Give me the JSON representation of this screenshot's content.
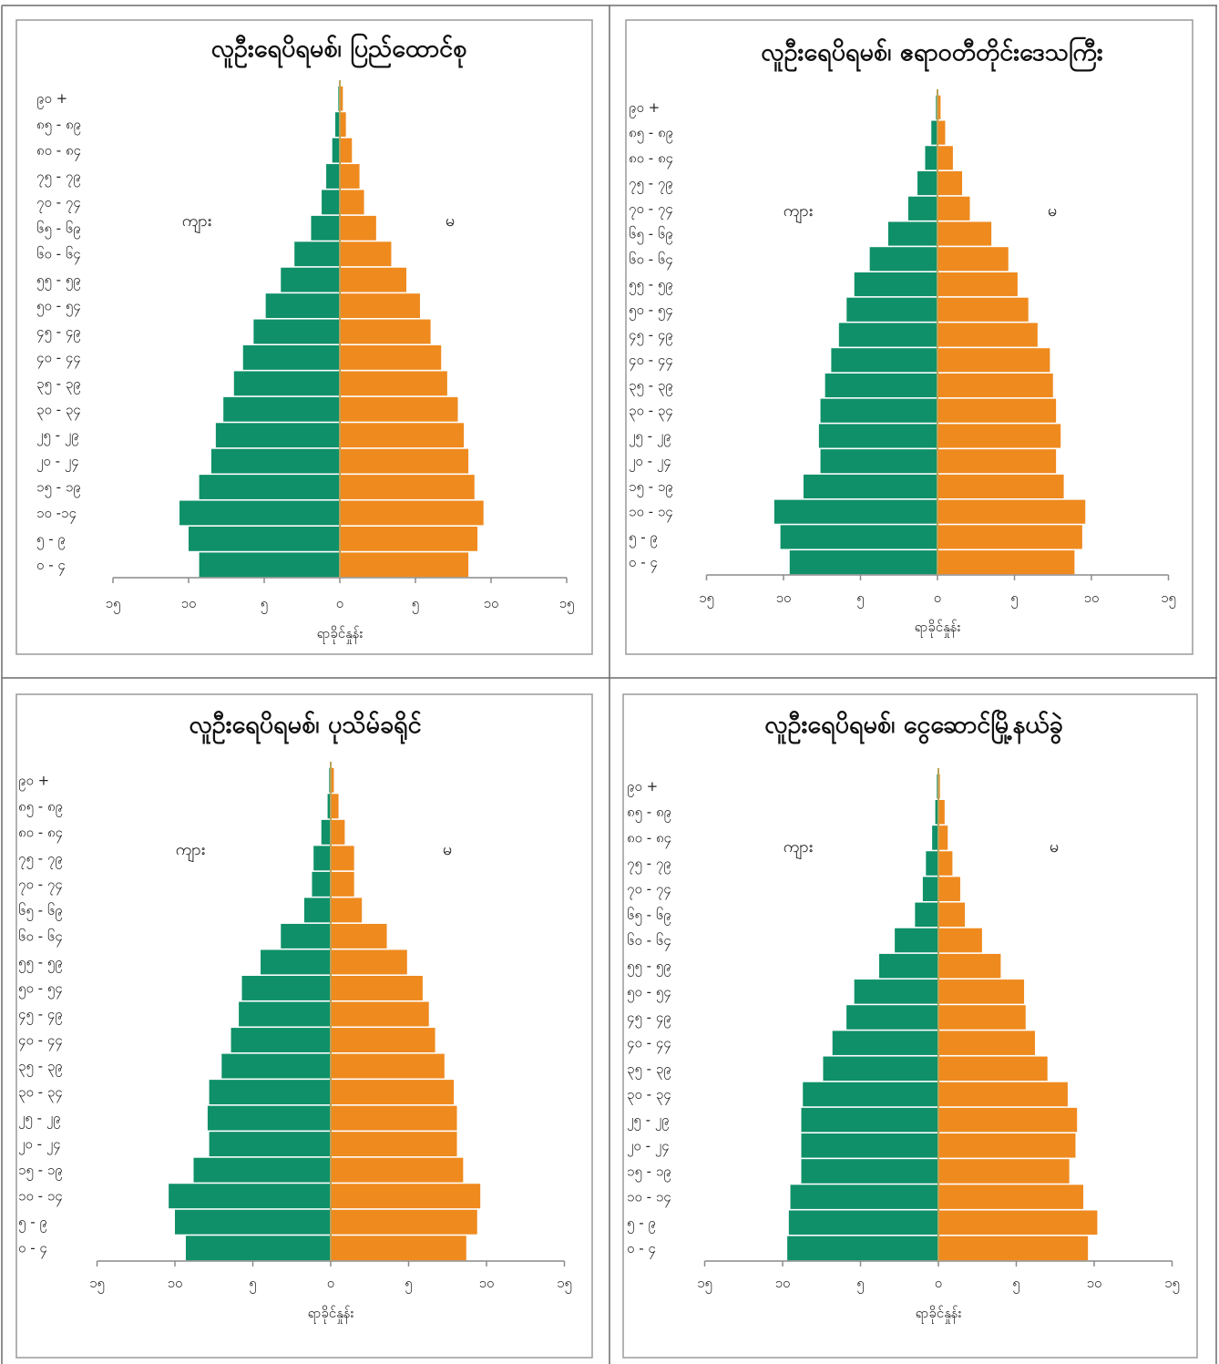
{
  "colors": {
    "male": "#0f9068",
    "female": "#ef8a1f"
  },
  "chart_data": [
    {
      "type": "bar",
      "orientation": "horizontal-population-pyramid",
      "title": "လူဦးရေပိရမစ်၊ ပြည်ထောင်စု",
      "xlabel": "ရာခိုင်နှုန်း",
      "xlim": [
        -15,
        15
      ],
      "xticks": [
        "၁၅",
        "၁၀",
        "၅",
        "၀",
        "၅",
        "၁၀",
        "၁၅"
      ],
      "left_label": "ကျား",
      "right_label": "မ",
      "categories": [
        "၀ - ၄",
        "၅ - ၉",
        "၁၀ -၁၄",
        "၁၅ - ၁၉",
        "၂၀ - ၂၄",
        "၂၅ - ၂၉",
        "၃၀ - ၃၄",
        "၃၅ - ၃၉",
        "၄၀ - ၄၄",
        "၄၅ - ၄၉",
        "၅၀ - ၅၄",
        "၅၅ - ၅၉",
        "၆၀ - ၆၄",
        "၆၅ - ၆၉",
        "၇၀ - ၇၄",
        "၇၅ - ၇၉",
        "၈၀ - ၈၄",
        "၈၅ - ၈၉",
        "၉၀ +"
      ],
      "series": [
        {
          "name": "ကျား",
          "values": [
            9.3,
            10.0,
            10.6,
            9.3,
            8.5,
            8.2,
            7.7,
            7.0,
            6.4,
            5.7,
            4.9,
            3.9,
            3.0,
            1.9,
            1.2,
            0.9,
            0.5,
            0.3,
            0.1
          ]
        },
        {
          "name": "မ",
          "values": [
            8.5,
            9.1,
            9.5,
            8.9,
            8.5,
            8.2,
            7.8,
            7.1,
            6.7,
            6.0,
            5.3,
            4.4,
            3.4,
            2.4,
            1.6,
            1.3,
            0.8,
            0.4,
            0.2
          ]
        }
      ]
    },
    {
      "type": "bar",
      "orientation": "horizontal-population-pyramid",
      "title": "လူဦးရေပိရမစ်၊ ဧရာဝတီတိုင်းဒေသကြီး",
      "xlabel": "ရာခိုင်နှုန်း",
      "xlim": [
        -15,
        15
      ],
      "xticks": [
        "၁၅",
        "၁၀",
        "၅",
        "၀",
        "၅",
        "၁၀",
        "၁၅"
      ],
      "left_label": "ကျား",
      "right_label": "မ",
      "categories": [
        "၀ - ၄",
        "၅ - ၉",
        "၁၀ - ၁၄",
        "၁၅ - ၁၉",
        "၂၀ - ၂၄",
        "၂၅ - ၂၉",
        "၃၀ - ၃၄",
        "၃၅ - ၃၉",
        "၄၀ - ၄၄",
        "၄၅ - ၄၉",
        "၅၀ - ၅၄",
        "၅၅ - ၅၉",
        "၆၀ - ၆၄",
        "၆၅ - ၆၉",
        "၇၀ - ၇၄",
        "၇၅ - ၇၉",
        "၈၀ - ၈၄",
        "၈၅ - ၈၉",
        "၉၀ +"
      ],
      "series": [
        {
          "name": "ကျား",
          "values": [
            9.6,
            10.2,
            10.6,
            8.7,
            7.6,
            7.7,
            7.6,
            7.3,
            6.9,
            6.4,
            5.9,
            5.4,
            4.4,
            3.2,
            1.9,
            1.3,
            0.8,
            0.4,
            0.1
          ]
        },
        {
          "name": "မ",
          "values": [
            8.9,
            9.4,
            9.6,
            8.2,
            7.7,
            8.0,
            7.7,
            7.5,
            7.3,
            6.5,
            5.9,
            5.2,
            4.6,
            3.5,
            2.1,
            1.6,
            1.0,
            0.5,
            0.2
          ]
        }
      ]
    },
    {
      "type": "bar",
      "orientation": "horizontal-population-pyramid",
      "title": "လူဦးရေပိရမစ်၊ ပုသိမ်ခရိုင်",
      "xlabel": "ရာခိုင်နှုန်း",
      "xlim": [
        -15,
        15
      ],
      "xticks": [
        "၁၅",
        "၁၀",
        "၅",
        "၀",
        "၅",
        "၁၀",
        "၁၅"
      ],
      "left_label": "ကျား",
      "right_label": "မ",
      "categories": [
        "၀ - ၄",
        "၅ - ၉",
        "၁၀ - ၁၄",
        "၁၅ - ၁၉",
        "၂၀ - ၂၄",
        "၂၅ - ၂၉",
        "၃၀ - ၃၄",
        "၃၅ - ၃၉",
        "၄၀ - ၄၄",
        "၄၅ - ၄၉",
        "၅၀ - ၅၄",
        "၅၅ - ၅၉",
        "၆၀ - ၆၄",
        "၆၅ - ၆၉",
        "၇၀ - ၇၄",
        "၇၅ - ၇၉",
        "၈၀ - ၈၄",
        "၈၅ - ၈၉",
        "၉၀ +"
      ],
      "series": [
        {
          "name": "ကျား",
          "values": [
            9.3,
            10.0,
            10.4,
            8.8,
            7.8,
            7.9,
            7.8,
            7.0,
            6.4,
            5.9,
            5.7,
            4.5,
            3.2,
            1.7,
            1.2,
            1.1,
            0.6,
            0.2,
            0.1
          ]
        },
        {
          "name": "မ",
          "values": [
            8.7,
            9.4,
            9.6,
            8.5,
            8.1,
            8.1,
            7.9,
            7.3,
            6.7,
            6.3,
            5.9,
            4.9,
            3.6,
            2.0,
            1.5,
            1.5,
            0.9,
            0.5,
            0.2
          ]
        }
      ]
    },
    {
      "type": "bar",
      "orientation": "horizontal-population-pyramid",
      "title": "လူဦးရေပိရမစ်၊ ငွေဆောင်မြို့နယ်ခွဲ",
      "xlabel": "ရာခိုင်နှုန်း",
      "xlim": [
        -15,
        15
      ],
      "xticks": [
        "၁၅",
        "၁၀",
        "၅",
        "၀",
        "၅",
        "၁၀",
        "၁၅"
      ],
      "left_label": "ကျား",
      "right_label": "မ",
      "categories": [
        "၀ - ၄",
        "၅ - ၉",
        "၁၀ - ၁၄",
        "၁၅ - ၁၉",
        "၂၀ - ၂၄",
        "၂၅ - ၂၉",
        "၃၀ - ၃၄",
        "၃၅ - ၃၉",
        "၄၀ - ၄၄",
        "၄၅ - ၄၉",
        "၅၀ - ၅၄",
        "၅၅ - ၅၉",
        "၆၀ - ၆၄",
        "၆၅ - ၆၉",
        "၇၀ - ၇၄",
        "၇၅ - ၇၉",
        "၈၀ - ၈၄",
        "၈၅ - ၈၉",
        "၉၀ +"
      ],
      "series": [
        {
          "name": "ကျား",
          "values": [
            9.7,
            9.6,
            9.5,
            8.8,
            8.8,
            8.8,
            8.7,
            7.4,
            6.8,
            5.9,
            5.4,
            3.8,
            2.8,
            1.5,
            1.0,
            0.8,
            0.4,
            0.2,
            0.1
          ]
        },
        {
          "name": "မ",
          "values": [
            9.6,
            10.2,
            9.3,
            8.4,
            8.8,
            8.9,
            8.3,
            7.0,
            6.2,
            5.6,
            5.5,
            4.0,
            2.8,
            1.7,
            1.4,
            0.9,
            0.6,
            0.4,
            0.1
          ]
        }
      ]
    }
  ]
}
